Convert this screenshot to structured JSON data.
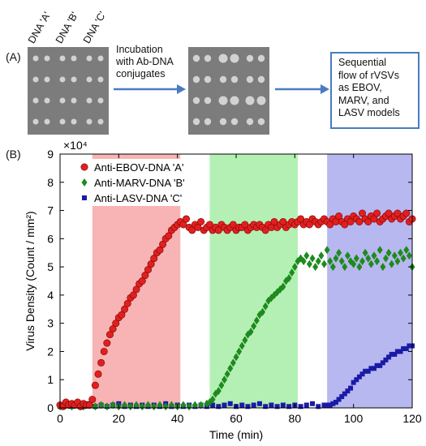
{
  "panel_a": {
    "label": "(A)",
    "dna_labels": [
      "DNA 'A'",
      "DNA 'B'",
      "DNA 'C'"
    ],
    "step_text": [
      "Incubation",
      "with Ab-DNA",
      "conjugates"
    ],
    "result_box": [
      "Sequential",
      "flow of rVSVs",
      "as EBOV,",
      "MARV, and",
      "LASV models"
    ],
    "arrow_color": "#4a7bc0"
  },
  "panel_b": {
    "label": "(B)"
  },
  "chart_data": {
    "type": "scatter",
    "title": "",
    "xlabel": "Time (min)",
    "ylabel": "Virus Density (Count / mm²)",
    "xlim": [
      0,
      120
    ],
    "ylim": [
      0,
      9
    ],
    "y_multiplier": "×10⁴",
    "xticks": [
      0,
      20,
      40,
      60,
      80,
      100,
      120
    ],
    "yticks": [
      0,
      1,
      2,
      3,
      4,
      5,
      6,
      7,
      8,
      9
    ],
    "grid": false,
    "legend_position": "top-left",
    "shaded_regions": [
      {
        "x0": 11,
        "x1": 41,
        "color": "#f8b4b4"
      },
      {
        "x0": 51,
        "x1": 81,
        "color": "#b4f0b4"
      },
      {
        "x0": 91,
        "x1": 121,
        "color": "#b8b8f0"
      }
    ],
    "series": [
      {
        "name": "Anti-EBOV-DNA 'A'",
        "marker": "circle",
        "color": "#e02020",
        "x": [
          0,
          1,
          2,
          3,
          4,
          5,
          6,
          7,
          8,
          9,
          10,
          11,
          12,
          13,
          14,
          15,
          16,
          17,
          18,
          19,
          20,
          21,
          22,
          23,
          24,
          25,
          26,
          27,
          28,
          29,
          30,
          31,
          32,
          33,
          34,
          35,
          36,
          37,
          38,
          39,
          40,
          41,
          42,
          43,
          44,
          45,
          46,
          47,
          48,
          49,
          50,
          51,
          52,
          53,
          54,
          55,
          56,
          57,
          58,
          59,
          60,
          61,
          62,
          63,
          64,
          65,
          66,
          67,
          68,
          69,
          70,
          71,
          72,
          73,
          74,
          75,
          76,
          77,
          78,
          79,
          80,
          81,
          82,
          83,
          84,
          85,
          86,
          87,
          88,
          89,
          90,
          91,
          92,
          93,
          94,
          95,
          96,
          97,
          98,
          99,
          100,
          101,
          102,
          103,
          104,
          105,
          106,
          107,
          108,
          109,
          110,
          111,
          112,
          113,
          114,
          115,
          116,
          117,
          118,
          119,
          120
        ],
        "y": [
          0.1,
          0.05,
          0.2,
          0.1,
          0.15,
          0.1,
          0.2,
          0.05,
          0.15,
          0.1,
          0.1,
          0.3,
          0.8,
          1.2,
          1.6,
          2.0,
          2.3,
          2.6,
          2.8,
          3.0,
          3.2,
          3.3,
          3.5,
          3.7,
          3.9,
          4.0,
          4.2,
          4.4,
          4.5,
          4.7,
          4.9,
          5.1,
          5.3,
          5.5,
          5.6,
          5.8,
          6.0,
          6.1,
          6.3,
          6.4,
          6.5,
          6.6,
          6.5,
          6.7,
          6.4,
          6.3,
          6.5,
          6.4,
          6.6,
          6.3,
          6.4,
          6.5,
          6.3,
          6.4,
          6.3,
          6.5,
          6.4,
          6.3,
          6.4,
          6.5,
          6.3,
          6.4,
          6.4,
          6.5,
          6.3,
          6.4,
          6.5,
          6.4,
          6.5,
          6.4,
          6.3,
          6.5,
          6.4,
          6.6,
          6.4,
          6.5,
          6.6,
          6.4,
          6.5,
          6.6,
          6.5,
          6.6,
          6.7,
          6.5,
          6.6,
          6.5,
          6.7,
          6.6,
          6.5,
          6.6,
          6.7,
          6.6,
          6.5,
          6.7,
          6.6,
          6.8,
          6.6,
          6.5,
          6.7,
          6.6,
          6.8,
          6.7,
          6.6,
          6.9,
          6.7,
          6.6,
          6.8,
          6.7,
          6.9,
          6.6,
          6.7,
          6.8,
          6.9,
          6.7,
          6.8,
          6.9,
          6.7,
          6.8,
          6.9,
          6.6,
          6.7
        ]
      },
      {
        "name": "Anti-MARV-DNA 'B'",
        "marker": "diamond",
        "color": "#1f8a1f",
        "x": [
          0,
          2,
          4,
          6,
          8,
          10,
          12,
          14,
          16,
          18,
          20,
          22,
          24,
          26,
          28,
          30,
          32,
          34,
          36,
          38,
          40,
          42,
          44,
          46,
          48,
          50,
          51,
          52,
          53,
          54,
          55,
          56,
          57,
          58,
          59,
          60,
          61,
          62,
          63,
          64,
          65,
          66,
          67,
          68,
          69,
          70,
          71,
          72,
          73,
          74,
          75,
          76,
          77,
          78,
          79,
          80,
          81,
          82,
          83,
          84,
          85,
          86,
          87,
          88,
          89,
          90,
          91,
          92,
          93,
          94,
          95,
          96,
          97,
          98,
          99,
          100,
          101,
          102,
          103,
          104,
          105,
          106,
          107,
          108,
          109,
          110,
          111,
          112,
          113,
          114,
          115,
          116,
          117,
          118,
          119,
          120
        ],
        "y": [
          0.05,
          0.1,
          0.05,
          0.1,
          0.05,
          0.1,
          0.05,
          0.1,
          0.05,
          0.1,
          0.05,
          0.1,
          0.05,
          0.1,
          0.05,
          0.1,
          0.05,
          0.1,
          0.05,
          0.1,
          0.05,
          0.1,
          0.05,
          0.1,
          0.1,
          0.15,
          0.2,
          0.3,
          0.5,
          0.6,
          0.8,
          1.0,
          1.2,
          1.4,
          1.6,
          1.8,
          2.0,
          2.2,
          2.4,
          2.6,
          2.7,
          2.9,
          3.1,
          3.3,
          3.4,
          3.6,
          3.8,
          3.9,
          4.0,
          4.1,
          4.2,
          4.3,
          4.5,
          4.6,
          4.8,
          5.0,
          5.2,
          5.3,
          5.2,
          5.4,
          5.1,
          5.3,
          5.0,
          5.2,
          5.4,
          5.1,
          5.6,
          5.2,
          5.0,
          5.3,
          5.5,
          5.2,
          5.0,
          5.4,
          5.2,
          5.1,
          5.3,
          5.0,
          5.2,
          5.5,
          5.3,
          5.1,
          5.4,
          5.2,
          5.6,
          5.0,
          5.3,
          5.5,
          5.1,
          5.4,
          5.2,
          5.5,
          5.3,
          5.6,
          5.4,
          5.0
        ]
      },
      {
        "name": "Anti-LASV-DNA 'C'",
        "marker": "square",
        "color": "#1a1aa8",
        "x": [
          0,
          2,
          4,
          6,
          8,
          10,
          12,
          14,
          16,
          18,
          20,
          22,
          24,
          26,
          28,
          30,
          32,
          34,
          36,
          38,
          40,
          42,
          44,
          46,
          48,
          50,
          52,
          54,
          56,
          58,
          60,
          62,
          64,
          66,
          68,
          70,
          72,
          74,
          76,
          78,
          80,
          82,
          84,
          86,
          88,
          90,
          91,
          92,
          93,
          94,
          95,
          96,
          97,
          98,
          99,
          100,
          101,
          102,
          103,
          104,
          105,
          106,
          107,
          108,
          109,
          110,
          111,
          112,
          113,
          114,
          115,
          116,
          117,
          118,
          119,
          120
        ],
        "y": [
          0.05,
          0.1,
          0.05,
          0.1,
          0.05,
          0.15,
          0.05,
          0.1,
          0.05,
          0.1,
          0.15,
          0.05,
          0.1,
          0.05,
          0.1,
          0.05,
          0.1,
          0.05,
          0.15,
          0.05,
          0.1,
          0.05,
          0.1,
          0.05,
          0.1,
          0.05,
          0.1,
          0.05,
          0.1,
          0.15,
          0.05,
          0.1,
          0.05,
          0.1,
          0.15,
          0.05,
          0.1,
          0.05,
          0.1,
          0.05,
          0.1,
          0.05,
          0.1,
          0.15,
          0.05,
          0.1,
          0.1,
          0.1,
          0.15,
          0.2,
          0.3,
          0.4,
          0.5,
          0.6,
          0.7,
          0.9,
          1.0,
          1.1,
          1.2,
          1.3,
          1.3,
          1.4,
          1.4,
          1.5,
          1.5,
          1.6,
          1.7,
          1.8,
          1.9,
          1.9,
          2.0,
          2.0,
          2.1,
          2.1,
          2.2,
          2.2
        ]
      }
    ]
  }
}
